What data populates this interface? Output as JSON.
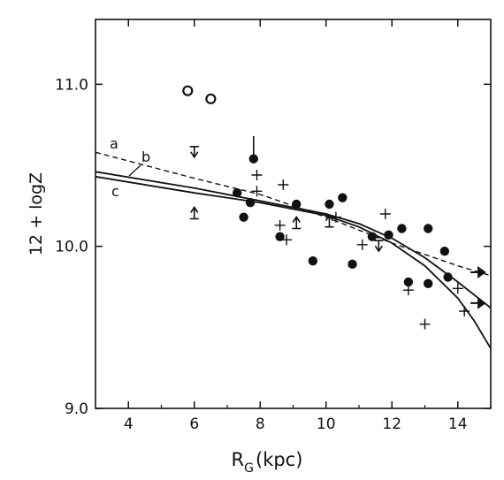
{
  "chart_data": {
    "type": "scatter",
    "title": "",
    "xlabel": "R",
    "xlabel_sub": "G",
    "xlabel_unit": "(kpc)",
    "ylabel": "12 + logZ",
    "xlim": [
      3,
      15
    ],
    "ylim": [
      9.0,
      11.4
    ],
    "xticks": [
      4,
      6,
      8,
      10,
      12,
      14
    ],
    "xtick_labels": [
      "4",
      "6",
      "8",
      "10",
      "12",
      "14"
    ],
    "yticks": [
      9.0,
      10.0,
      11.0
    ],
    "ytick_labels": [
      "9.0",
      "10.0",
      "11.0"
    ],
    "grid": false,
    "legend": "none",
    "series": [
      {
        "marker": "filled-circle",
        "points": [
          [
            7.3,
            10.33
          ],
          [
            7.5,
            10.18
          ],
          [
            7.7,
            10.27
          ],
          [
            7.8,
            10.54
          ],
          [
            9.1,
            10.26
          ],
          [
            8.6,
            10.06
          ],
          [
            9.6,
            9.91
          ],
          [
            10.1,
            10.26
          ],
          [
            10.5,
            10.3
          ],
          [
            10.8,
            9.89
          ],
          [
            11.4,
            10.06
          ],
          [
            11.9,
            10.07
          ],
          [
            12.3,
            10.11
          ],
          [
            12.5,
            9.78
          ],
          [
            13.1,
            10.11
          ],
          [
            13.1,
            9.77
          ],
          [
            13.6,
            9.97
          ],
          [
            13.7,
            9.81
          ]
        ]
      },
      {
        "marker": "open-circle",
        "points": [
          [
            5.8,
            10.96
          ],
          [
            6.5,
            10.91
          ]
        ]
      },
      {
        "marker": "cross",
        "points": [
          [
            7.9,
            10.44
          ],
          [
            7.9,
            10.34
          ],
          [
            8.7,
            10.38
          ],
          [
            8.6,
            10.13
          ],
          [
            8.8,
            10.04
          ],
          [
            10.3,
            10.18
          ],
          [
            11.1,
            10.01
          ],
          [
            11.8,
            10.2
          ],
          [
            12.5,
            9.73
          ],
          [
            13.0,
            9.52
          ],
          [
            14.0,
            9.74
          ],
          [
            14.2,
            9.6
          ]
        ]
      },
      {
        "marker": "down-arrow",
        "points": [
          [
            6.0,
            10.55
          ],
          [
            11.6,
            9.97
          ]
        ]
      },
      {
        "marker": "up-arrow",
        "points": [
          [
            6.0,
            10.17
          ],
          [
            9.1,
            10.11
          ],
          [
            10.1,
            10.12
          ]
        ]
      },
      {
        "marker": "right-arrow",
        "points": [
          [
            14.6,
            9.84
          ],
          [
            14.6,
            9.65
          ]
        ]
      }
    ],
    "curves": [
      {
        "label": "a",
        "style": "dashed",
        "points": [
          [
            3,
            10.58
          ],
          [
            6,
            10.42
          ],
          [
            8,
            10.32
          ],
          [
            10,
            10.18
          ],
          [
            12,
            10.02
          ],
          [
            14,
            9.88
          ],
          [
            15,
            9.82
          ]
        ]
      },
      {
        "label": "b",
        "style": "solid",
        "points": [
          [
            3,
            10.46
          ],
          [
            6,
            10.36
          ],
          [
            8,
            10.28
          ],
          [
            10,
            10.2
          ],
          [
            11,
            10.14
          ],
          [
            12,
            10.05
          ],
          [
            13,
            9.93
          ],
          [
            14,
            9.78
          ],
          [
            15,
            9.62
          ]
        ]
      },
      {
        "label": "c",
        "style": "solid",
        "points": [
          [
            3,
            10.43
          ],
          [
            6,
            10.33
          ],
          [
            8,
            10.27
          ],
          [
            10,
            10.19
          ],
          [
            11,
            10.12
          ],
          [
            12,
            10.02
          ],
          [
            13,
            9.88
          ],
          [
            14,
            9.68
          ],
          [
            14.5,
            9.54
          ],
          [
            15,
            9.37
          ]
        ]
      }
    ],
    "errorbar": {
      "x": 7.8,
      "y": 10.54,
      "yerr_upper": 0.14
    }
  }
}
